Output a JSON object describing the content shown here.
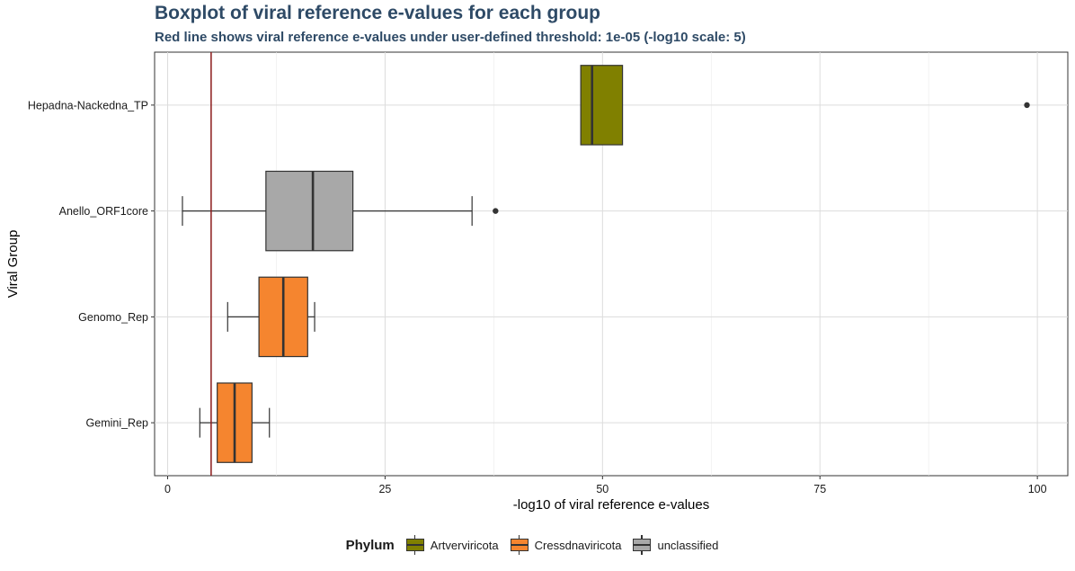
{
  "chart_data": {
    "type": "boxplot",
    "title": "Boxplot of viral reference e-values for each group",
    "subtitle": "Red line shows viral reference e-values under user-defined threshold: 1e-05 (-log10 scale: 5)",
    "xlabel": "-log10 of viral reference e-values",
    "ylabel": "Viral Group",
    "xlim": [
      -1.5,
      103.5
    ],
    "x_ticks": [
      0,
      25,
      50,
      75,
      100
    ],
    "threshold": 5,
    "threshold_color": "#8b1a1a",
    "grid": true,
    "legend_position": "bottom",
    "legend_title": "Phylum",
    "legend": [
      {
        "name": "Artverviricota",
        "color": "#808000"
      },
      {
        "name": "Cressdnaviricota",
        "color": "#f5852f"
      },
      {
        "name": "unclassified",
        "color": "#a8a8a8"
      }
    ],
    "categories": [
      "Hepadna-Nackedna_TP",
      "Anello_ORF1core",
      "Genomo_Rep",
      "Gemini_Rep"
    ],
    "boxes": [
      {
        "group": "Hepadna-Nackedna_TP",
        "phylum": "Artverviricota",
        "whisker_low": 47.5,
        "q1": 47.5,
        "median": 48.8,
        "q3": 52.3,
        "whisker_high": 52.3,
        "outliers": [
          98.8
        ]
      },
      {
        "group": "Anello_ORF1core",
        "phylum": "unclassified",
        "whisker_low": 1.7,
        "q1": 11.3,
        "median": 16.7,
        "q3": 21.3,
        "whisker_high": 35.0,
        "outliers": [
          37.7
        ]
      },
      {
        "group": "Genomo_Rep",
        "phylum": "Cressdnaviricota",
        "whisker_low": 6.9,
        "q1": 10.5,
        "median": 13.3,
        "q3": 16.1,
        "whisker_high": 16.9,
        "outliers": []
      },
      {
        "group": "Gemini_Rep",
        "phylum": "Cressdnaviricota",
        "whisker_low": 3.7,
        "q1": 5.7,
        "median": 7.7,
        "q3": 9.7,
        "whisker_high": 11.7,
        "outliers": []
      }
    ]
  }
}
